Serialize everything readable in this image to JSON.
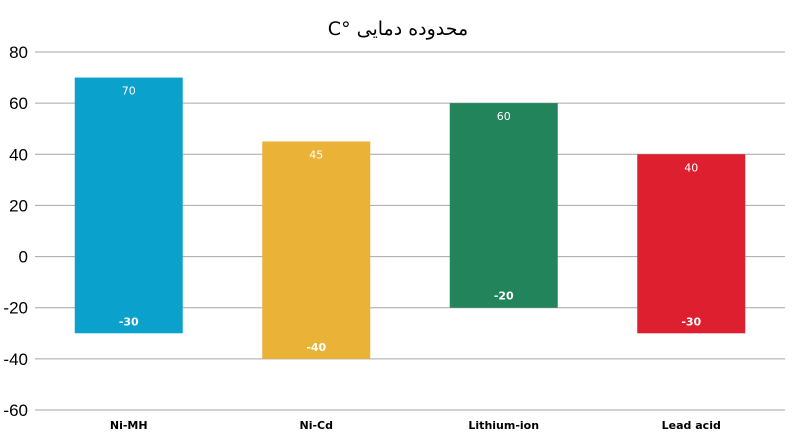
{
  "chart_data": {
    "type": "bar",
    "title": "محدوده دمایی °C",
    "categories": [
      "Ni-MH",
      "Ni-Cd",
      "Lithium-ion",
      "Lead acid"
    ],
    "series": [
      {
        "values": [
          [
            -30,
            70
          ],
          [
            -40,
            45
          ],
          [
            -20,
            60
          ],
          [
            -30,
            40
          ]
        ]
      }
    ],
    "high_labels": [
      "70",
      "45",
      "60",
      "40"
    ],
    "low_labels": [
      "-30",
      "-40",
      "-20",
      "-30"
    ],
    "colors": [
      "#0aa1cd",
      "#eab236",
      "#22845a",
      "#de1f2f"
    ],
    "ylim": [
      -60,
      80
    ],
    "yticks": [
      "80",
      "60",
      "40",
      "20",
      "0",
      "-20",
      "-40",
      "-60"
    ],
    "ytick_values": [
      80,
      60,
      40,
      20,
      0,
      -20,
      -40,
      -60
    ],
    "grid": true,
    "xlabel": "",
    "ylabel": ""
  }
}
